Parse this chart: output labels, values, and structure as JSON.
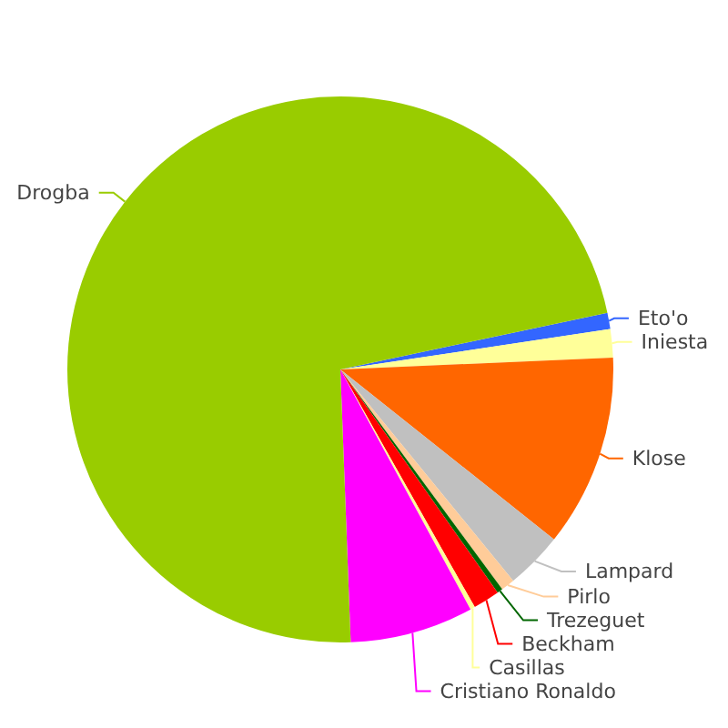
{
  "chart_data": {
    "type": "pie",
    "legend": false,
    "categories": [
      "Eto'o",
      "Iniesta",
      "Klose",
      "Lampard",
      "Pirlo",
      "Trezeguet",
      "Beckham",
      "Casillas",
      "Cristiano Ronaldo",
      "Drogba"
    ],
    "values": [
      0.97,
      1.67,
      11.39,
      3.39,
      0.81,
      0.33,
      1.58,
      0.28,
      7.31,
      72.27
    ],
    "colors": [
      "#3366ff",
      "#ffff99",
      "#ff6600",
      "#c0c0c0",
      "#ffcc99",
      "#006600",
      "#ff0000",
      "#ffff99",
      "#ff00ff",
      "#99cc00"
    ]
  }
}
